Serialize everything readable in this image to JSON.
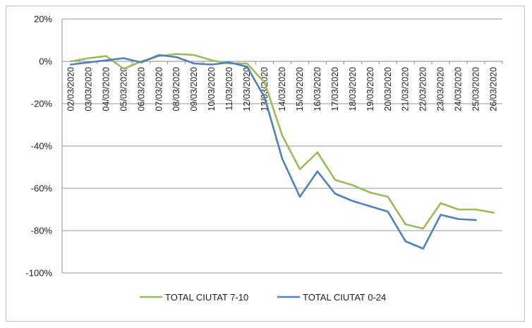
{
  "chart_data": {
    "type": "line",
    "title": "",
    "xlabel": "",
    "ylabel": "",
    "ylim": [
      -100,
      20
    ],
    "yticks": [
      20,
      0,
      -20,
      -40,
      -60,
      -80,
      -100
    ],
    "ytick_labels": [
      "20%",
      "0%",
      "-20%",
      "-40%",
      "-60%",
      "-80%",
      "-100%"
    ],
    "grid": true,
    "legend": "bottom",
    "categories": [
      "02/03/2020",
      "03/03/2020",
      "04/03/2020",
      "05/03/2020",
      "06/03/2020",
      "07/03/2020",
      "08/03/2020",
      "09/03/2020",
      "10/03/2020",
      "11/03/2020",
      "12/03/2020",
      "13/03/2020",
      "14/03/2020",
      "15/03/2020",
      "16/03/2020",
      "17/03/2020",
      "18/03/2020",
      "19/03/2020",
      "20/03/2020",
      "21/03/2020",
      "22/03/2020",
      "23/03/2020",
      "24/03/2020",
      "25/03/2020",
      "26/03/2020"
    ],
    "series": [
      {
        "name": "TOTAL CIUTAT 7-10",
        "color": "#9BBB59",
        "values": [
          0,
          1.5,
          2.5,
          -3.5,
          0,
          2.5,
          3.5,
          3,
          0.5,
          -1,
          -1,
          -10,
          -35,
          -51,
          -43,
          -56,
          -58.5,
          -62,
          -64,
          -77,
          -79,
          -67,
          -70,
          -70,
          -71.5
        ]
      },
      {
        "name": "TOTAL CIUTAT 0-24",
        "color": "#4F81BD",
        "values": [
          -1.5,
          -0.5,
          0.5,
          1.5,
          -0.5,
          3,
          2,
          -1,
          -1.5,
          -0.5,
          -2.5,
          -17,
          -46,
          -64,
          -52,
          -62.5,
          -66,
          -68.5,
          -71,
          -85,
          -88.5,
          -72.5,
          -74.5,
          -75,
          null
        ]
      }
    ]
  }
}
